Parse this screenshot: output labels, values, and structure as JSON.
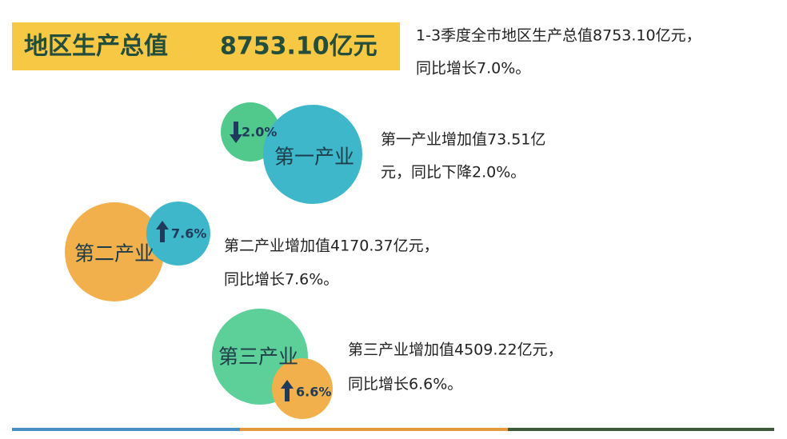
{
  "header": {
    "title": "地区生产总值",
    "value": "8753.10亿元"
  },
  "summary": {
    "lines": [
      "1-3季度全市地区生产总值8753.10亿元，",
      "同比增长7.0%。"
    ]
  },
  "sectors": [
    {
      "name": "第一产业",
      "change": "2.0%",
      "lines": [
        "第一产业增加值73.51亿",
        "元，同比下降2.0%。"
      ]
    },
    {
      "name": "第二产业",
      "change": "7.6%",
      "lines": [
        "第二产业增加值4170.37亿元，",
        "同比增长7.6%。"
      ]
    },
    {
      "name": "第三产业",
      "change": "6.6%",
      "lines": [
        "第三产业增加值4509.22亿元，",
        "同比增长6.6%。"
      ]
    }
  ]
}
